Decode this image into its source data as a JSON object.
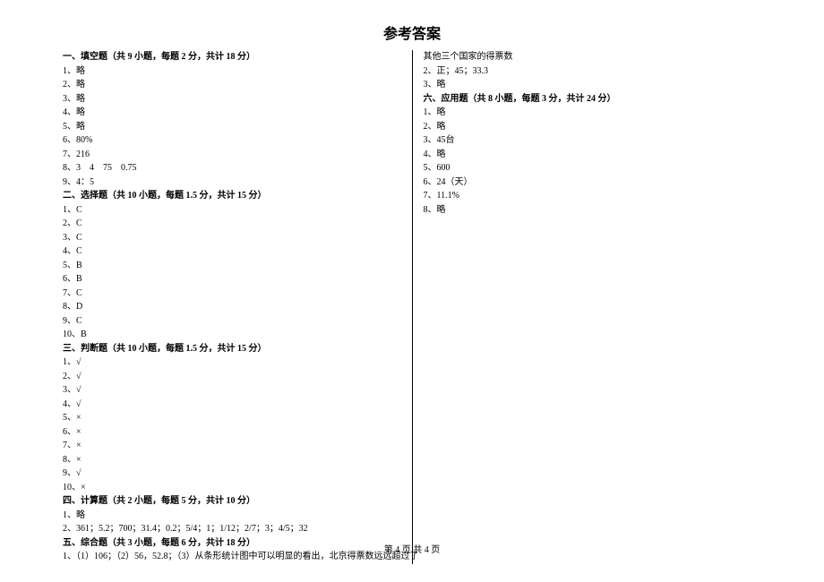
{
  "title": "参考答案",
  "footer": "第 4 页 共 4 页",
  "left": {
    "s1": {
      "header": "一、填空题（共 9 小题，每题 2 分，共计 18 分）",
      "items": [
        "1、略",
        "2、略",
        "3、略",
        "4、略",
        "5、略",
        "6、80%",
        "7、216",
        "8、3    4    75    0.75",
        "9、4：5"
      ]
    },
    "s2": {
      "header": "二、选择题（共 10 小题，每题 1.5 分，共计 15 分）",
      "items": [
        "1、C",
        "2、C",
        "3、C",
        "4、C",
        "5、B",
        "6、B",
        "7、C",
        "8、D",
        "9、C",
        "10、B"
      ]
    },
    "s3": {
      "header": "三、判断题（共 10 小题，每题 1.5 分，共计 15 分）",
      "items": [
        "1、√",
        "2、√",
        "3、√",
        "4、√",
        "5、×",
        "6、×",
        "7、×",
        "8、×",
        "9、√",
        "10、×"
      ]
    },
    "s4": {
      "header": "四、计算题（共 2 小题，每题 5 分，共计 10 分）",
      "items": [
        "1、略",
        "2、361；5.2；700；31.4；0.2；5/4；1；1/12；2/7；3；4/5；32"
      ]
    },
    "s5": {
      "header": "五、综合题（共 3 小题，每题 6 分，共计 18 分）",
      "items": [
        "1、（1）106；（2）56，52.8；（3）从条形统计图中可以明显的看出，北京得票数远远超过了"
      ]
    }
  },
  "right": {
    "carry": [
      "其他三个国家的得票数",
      "2、正；45；33.3",
      "3、略"
    ],
    "s6": {
      "header": "六、应用题（共 8 小题，每题 3 分，共计 24 分）",
      "items": [
        "1、略",
        "2、略",
        "3、45台",
        "4、略",
        "5、600",
        "6、24（天）",
        "7、11.1%",
        "8、略"
      ]
    }
  }
}
